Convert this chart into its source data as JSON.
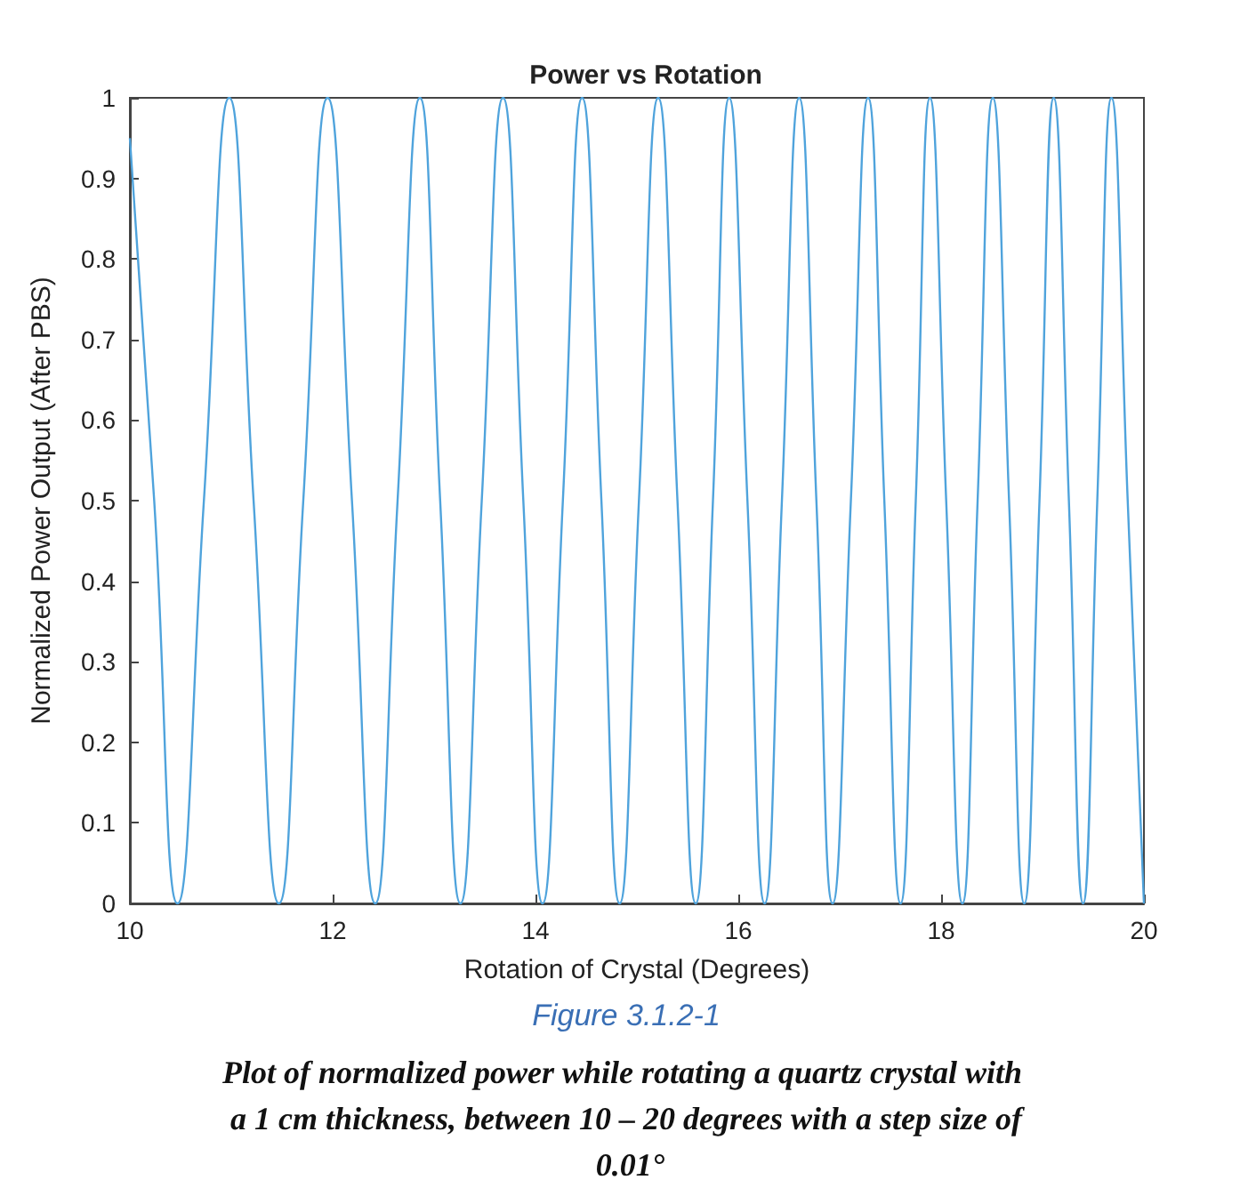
{
  "chart_data": {
    "type": "line",
    "title": "Power vs Rotation",
    "xlabel": "Rotation of Crystal (Degrees)",
    "ylabel": "Normalized Power Output (After PBS)",
    "annotations": [
      "Figure 3.1.2-1",
      "Plot of normalized power while rotating a quartz crystal with a 1 cm thickness, between 10 – 20 degrees with a step size of 0.01°"
    ],
    "xlim": [
      10,
      20
    ],
    "xticks": [
      10,
      12,
      14,
      16,
      18,
      20
    ],
    "ylim": [
      0,
      1
    ],
    "yticks": [
      0,
      0.1,
      0.2,
      0.3,
      0.4,
      0.5,
      0.6,
      0.7,
      0.8,
      0.9,
      1
    ],
    "grid": false,
    "marker": "none",
    "line_style": "solid",
    "series": [
      {
        "color": "#4fa3dc",
        "x": [
          10,
          10.24,
          10.47,
          10.73,
          10.98,
          11.22,
          11.47,
          11.71,
          11.95,
          12.19,
          12.42,
          12.64,
          12.86,
          13.06,
          13.26,
          13.47,
          13.68,
          13.88,
          14.07,
          14.27,
          14.46,
          14.65,
          14.83,
          15.02,
          15.21,
          15.4,
          15.58,
          15.75,
          15.91,
          16.09,
          16.26,
          16.43,
          16.6,
          16.77,
          16.93,
          17.11,
          17.28,
          17.44,
          17.6,
          17.75,
          17.89,
          18.05,
          18.21,
          18.36,
          18.51,
          18.67,
          18.82,
          18.97,
          19.11,
          19.26,
          19.4,
          19.54,
          19.68,
          19.84,
          20
        ],
        "values": [
          0.95,
          0.5,
          0,
          0.5,
          1,
          0.5,
          0,
          0.5,
          1,
          0.5,
          0,
          0.5,
          1,
          0.5,
          0,
          0.5,
          1,
          0.5,
          0,
          0.5,
          1,
          0.5,
          0,
          0.5,
          1,
          0.5,
          0,
          0.5,
          1,
          0.5,
          0,
          0.5,
          1,
          0.5,
          0,
          0.5,
          1,
          0.5,
          0,
          0.5,
          1,
          0.5,
          0,
          0.5,
          1,
          0.5,
          0,
          0.5,
          1,
          0.5,
          0,
          0.5,
          1,
          0.5,
          0
        ]
      }
    ]
  }
}
